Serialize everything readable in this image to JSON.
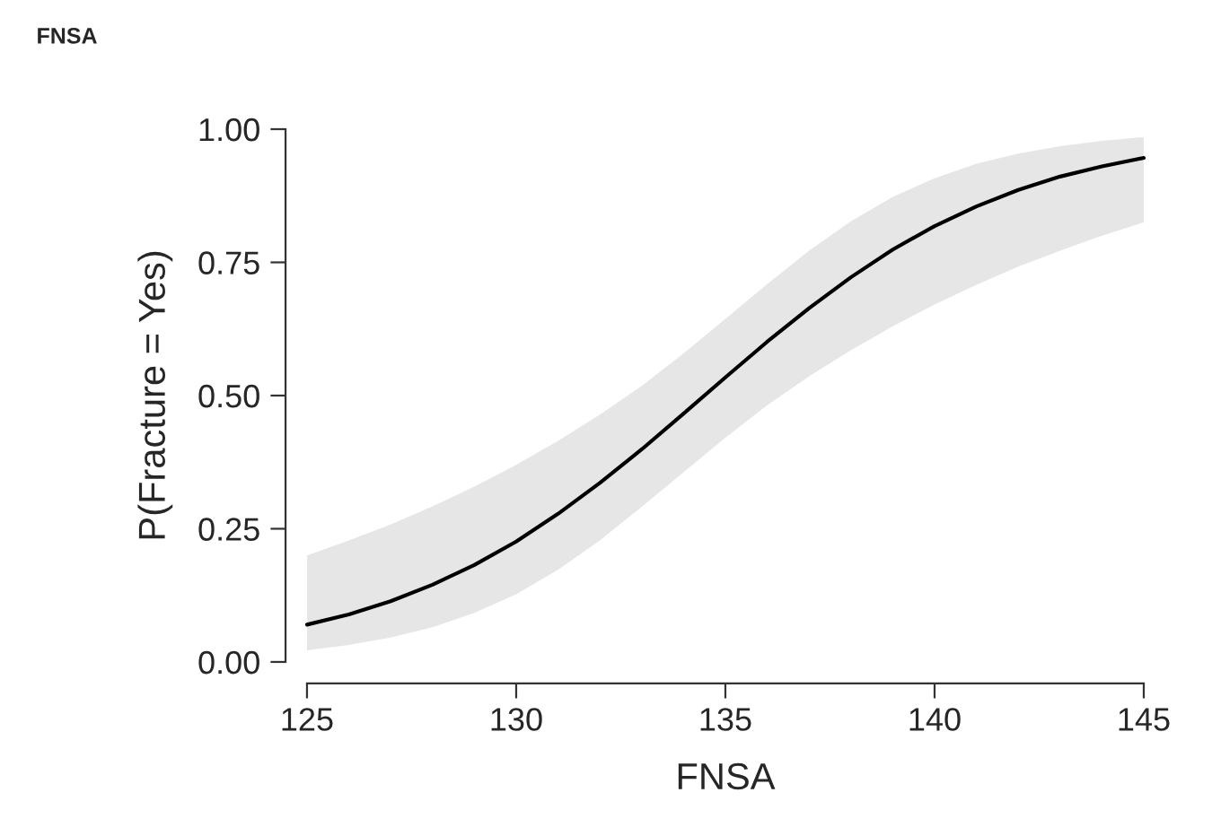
{
  "chart_data": {
    "type": "line",
    "title": "FNSA",
    "xlabel": "FNSA",
    "ylabel": "P(Fracture = Yes)",
    "x": [
      125,
      126,
      127,
      128,
      129,
      130,
      131,
      132,
      133,
      134,
      135,
      136,
      137,
      138,
      139,
      140,
      141,
      142,
      143,
      144,
      145
    ],
    "series": [
      {
        "color": "#000000",
        "values": [
          0.07,
          0.089,
          0.114,
          0.145,
          0.182,
          0.226,
          0.278,
          0.336,
          0.399,
          0.466,
          0.534,
          0.601,
          0.664,
          0.722,
          0.774,
          0.818,
          0.855,
          0.886,
          0.911,
          0.93,
          0.946
        ],
        "lower": [
          0.022,
          0.032,
          0.046,
          0.065,
          0.092,
          0.127,
          0.173,
          0.228,
          0.291,
          0.356,
          0.421,
          0.482,
          0.536,
          0.585,
          0.63,
          0.671,
          0.708,
          0.742,
          0.772,
          0.8,
          0.825
        ],
        "upper": [
          0.2,
          0.228,
          0.258,
          0.292,
          0.329,
          0.37,
          0.415,
          0.464,
          0.518,
          0.579,
          0.644,
          0.709,
          0.772,
          0.827,
          0.873,
          0.908,
          0.935,
          0.954,
          0.968,
          0.978,
          0.985
        ]
      }
    ],
    "xlim": [
      125,
      145
    ],
    "ylim": [
      0,
      1
    ],
    "xticks": [
      125,
      130,
      135,
      140,
      145
    ],
    "yticks": [
      {
        "value": 0,
        "label": "0.00"
      },
      {
        "value": 0.25,
        "label": "0.25"
      },
      {
        "value": 0.5,
        "label": "0.50"
      },
      {
        "value": 0.75,
        "label": "0.75"
      },
      {
        "value": 1,
        "label": "1.00"
      }
    ],
    "grid": false,
    "legend": false
  }
}
